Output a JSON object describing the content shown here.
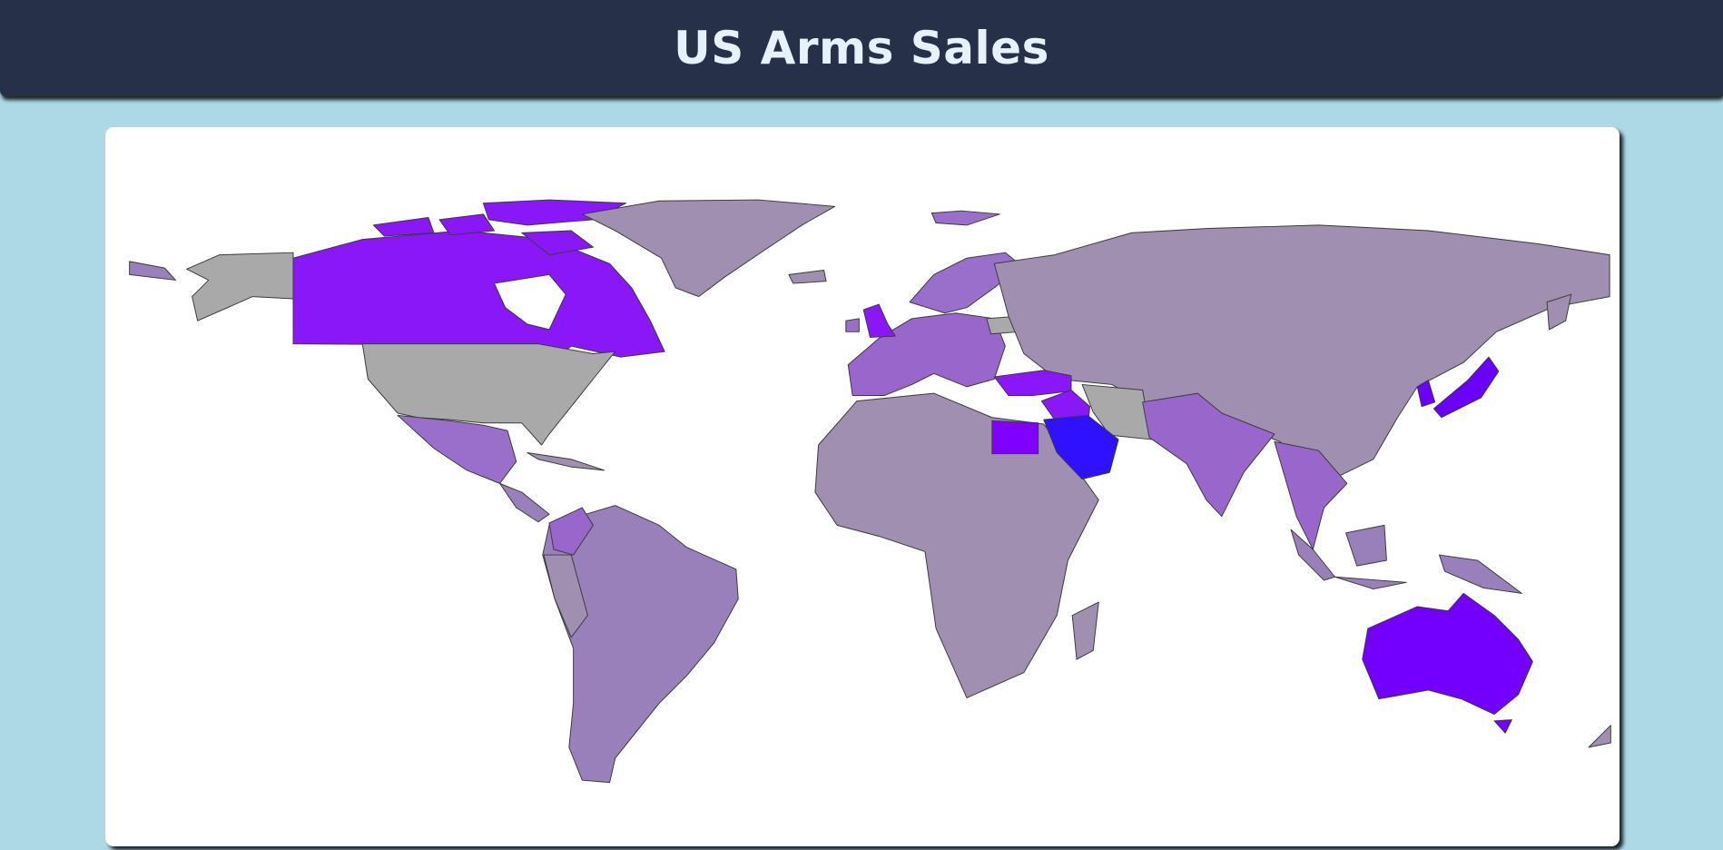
{
  "header": {
    "title": "US Arms Sales"
  }
}
